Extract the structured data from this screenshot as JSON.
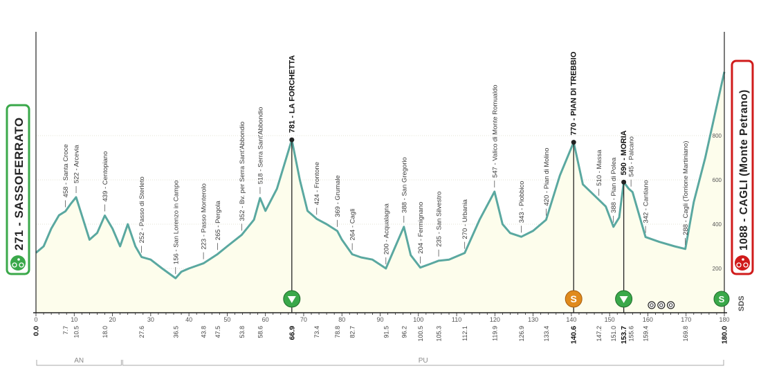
{
  "colors": {
    "profile_line": "#5aa8a0",
    "profile_fill": "#fdfdec",
    "start_border": "#3aa84a",
    "finish_border": "#d01b1b",
    "sprint_marker": "#e08a1c",
    "gpm_marker": "#3aa84a"
  },
  "start": {
    "label": "271 - SASSOFERRATO",
    "icon": "cyclist-icon"
  },
  "finish": {
    "label": "1088 - CAGLI (Monte Petrano)",
    "icon": "cyclist-icon"
  },
  "watermark": "SDS",
  "chart_data": {
    "type": "area",
    "xlim": [
      0,
      180
    ],
    "x_ticks": [
      0,
      10,
      20,
      30,
      40,
      50,
      60,
      70,
      80,
      90,
      100,
      110,
      120,
      130,
      140,
      150,
      160,
      170,
      180
    ],
    "y_ticks": [
      200,
      400,
      600,
      800
    ],
    "ylim": [
      0,
      1250
    ],
    "grid": true,
    "profile": {
      "x": [
        0,
        2,
        4,
        6,
        7.7,
        9,
        10.5,
        12,
        14,
        16,
        18,
        20,
        22,
        24,
        26,
        27.6,
        30,
        33,
        36.5,
        38,
        40,
        43.8,
        47.5,
        50,
        53.8,
        57,
        58.6,
        60,
        63,
        66.9,
        69,
        71,
        73.4,
        76,
        78.8,
        80,
        82.7,
        85,
        88,
        91.5,
        94,
        96.2,
        98,
        100.5,
        103,
        105.3,
        108,
        112.1,
        116,
        119.9,
        122,
        124,
        126.9,
        130,
        133.4,
        137,
        140.6,
        143,
        147.2,
        149,
        151,
        152.5,
        153.7,
        155,
        156,
        159.4,
        163,
        167,
        169.8,
        172,
        175,
        180
      ],
      "y": [
        271,
        300,
        380,
        440,
        458,
        490,
        522,
        440,
        330,
        360,
        439,
        380,
        300,
        400,
        300,
        252,
        240,
        200,
        156,
        185,
        200,
        223,
        265,
        300,
        352,
        420,
        518,
        460,
        560,
        781,
        600,
        460,
        424,
        400,
        369,
        330,
        264,
        250,
        240,
        200,
        300,
        388,
        260,
        204,
        220,
        235,
        240,
        270,
        420,
        547,
        400,
        360,
        343,
        370,
        420,
        620,
        770,
        580,
        510,
        480,
        388,
        430,
        590,
        560,
        545,
        342,
        320,
        300,
        288,
        500,
        700,
        1088
      ]
    },
    "waypoints": [
      {
        "km": "7.7",
        "label": "458 - Santa Croce",
        "bold": false
      },
      {
        "km": "10.5",
        "label": "522 - Arcevia",
        "bold": false
      },
      {
        "km": "18.0",
        "label": "439 - Centopiano",
        "bold": false
      },
      {
        "km": "27.6",
        "label": "252 - Passo di Sterleto",
        "bold": false
      },
      {
        "km": "36.5",
        "label": "156 - San Lorenzo in Campo",
        "bold": false
      },
      {
        "km": "43.8",
        "label": "223 - Passo Monterolo",
        "bold": false
      },
      {
        "km": "47.5",
        "label": "265 - Pergola",
        "bold": false
      },
      {
        "km": "53.8",
        "label": "352 - Bv. per Serra Sant'Abbondio",
        "bold": false
      },
      {
        "km": "58.6",
        "label": "518 - Serra Sant'Abbondio",
        "bold": false
      },
      {
        "km": "66.9",
        "label": "781 - LA FORCHETTA",
        "bold": true
      },
      {
        "km": "73.4",
        "label": "424 - Frontone",
        "bold": false
      },
      {
        "km": "78.8",
        "label": "369 - Grumale",
        "bold": false
      },
      {
        "km": "82.7",
        "label": "264 - Cagli",
        "bold": false
      },
      {
        "km": "91.5",
        "label": "200 - Acqualagna",
        "bold": false
      },
      {
        "km": "96.2",
        "label": "388 - San Gregorio",
        "bold": false
      },
      {
        "km": "100.5",
        "label": "204 - Fermignano",
        "bold": false
      },
      {
        "km": "105.3",
        "label": "235 - San Silvestro",
        "bold": false
      },
      {
        "km": "112.1",
        "label": "270 - Urbania",
        "bold": false
      },
      {
        "km": "119.9",
        "label": "547 - Valico di Monte Romualdo",
        "bold": false
      },
      {
        "km": "126.9",
        "label": "343 - Piobbico",
        "bold": false
      },
      {
        "km": "133.4",
        "label": "420 - Pian di Molino",
        "bold": false
      },
      {
        "km": "140.6",
        "label": "770 - PIAN DI TREBBIO",
        "bold": true
      },
      {
        "km": "147.2",
        "label": "510 - Massa",
        "bold": false
      },
      {
        "km": "151.0",
        "label": "388 - Pian di Polea",
        "bold": false
      },
      {
        "km": "153.7",
        "label": "590 - MORIA",
        "bold": true
      },
      {
        "km": "155.6",
        "label": "545 - Palcano",
        "bold": false
      },
      {
        "km": "159.4",
        "label": "342 - Cantiano",
        "bold": false
      },
      {
        "km": "169.8",
        "label": "288 - Cagli (Torrione Martiniano)",
        "bold": false
      },
      {
        "km": "0.0",
        "label": "",
        "bold": true
      },
      {
        "km": "180.0",
        "label": "",
        "bold": true
      }
    ],
    "regions": [
      {
        "label": "AN",
        "from": 0,
        "to": 22.5
      },
      {
        "label": "PU",
        "from": 22.5,
        "to": 180
      }
    ],
    "markers": [
      {
        "km": 66.9,
        "type": "gpm",
        "icon": "gpm-triangle-icon"
      },
      {
        "km": 140.6,
        "type": "sprint",
        "icon": "sprint-s-icon",
        "glyph": "S"
      },
      {
        "km": 153.7,
        "type": "gpm",
        "icon": "gpm-triangle-icon"
      },
      {
        "km": 180.0,
        "type": "finish",
        "icon": "finish-flag-icon",
        "glyph": "S"
      }
    ],
    "tunnels": [
      {
        "km": 161
      },
      {
        "km": 163.5
      },
      {
        "km": 166
      }
    ]
  }
}
